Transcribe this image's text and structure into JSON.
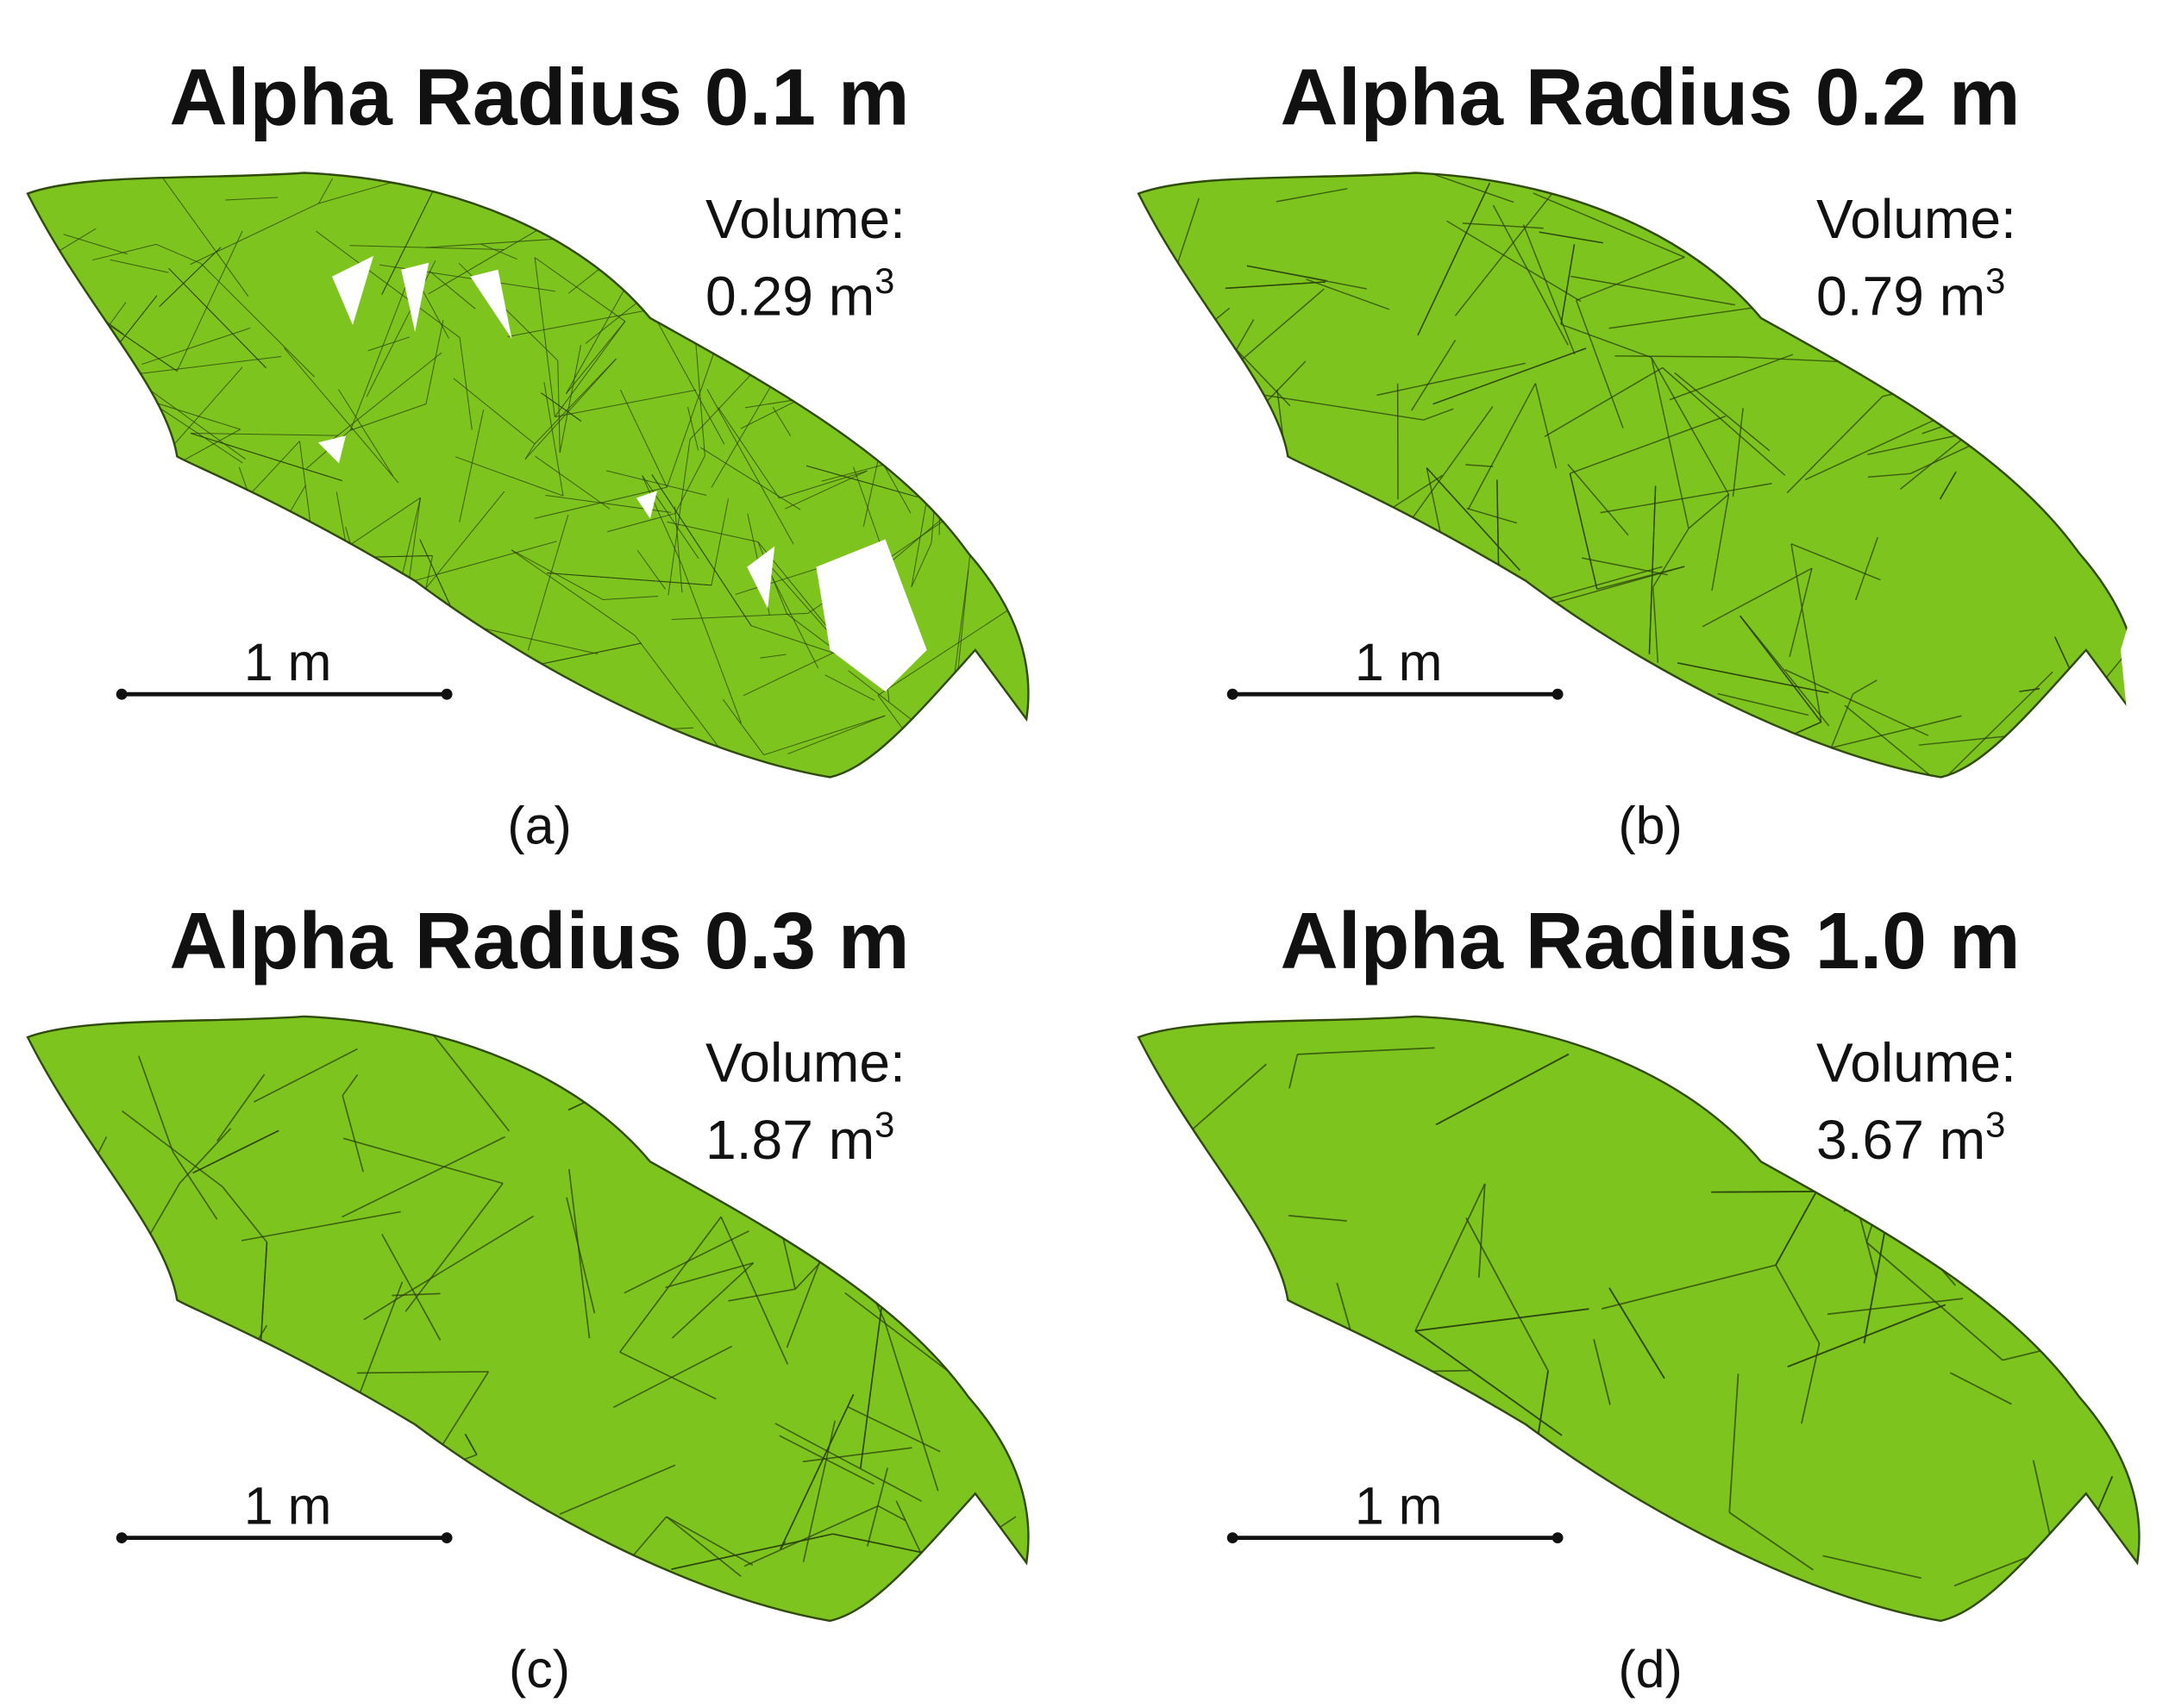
{
  "panels": [
    {
      "title": "Alpha Radius 0.1 m",
      "volume_label": "Volume:",
      "volume": "0.29 m",
      "volume_exponent": "3",
      "scale_label": "1 m",
      "caption": "(a)"
    },
    {
      "title": "Alpha Radius 0.2 m",
      "volume_label": "Volume:",
      "volume": "0.79 m",
      "volume_exponent": "3",
      "scale_label": "1 m",
      "caption": "(b)"
    },
    {
      "title": "Alpha Radius 0.3 m",
      "volume_label": "Volume:",
      "volume": "1.87 m",
      "volume_exponent": "3",
      "scale_label": "1 m",
      "caption": "(c)"
    },
    {
      "title": "Alpha Radius 1.0 m",
      "volume_label": "Volume:",
      "volume": "3.67 m",
      "volume_exponent": "3",
      "scale_label": "1 m",
      "caption": "(d)"
    }
  ]
}
